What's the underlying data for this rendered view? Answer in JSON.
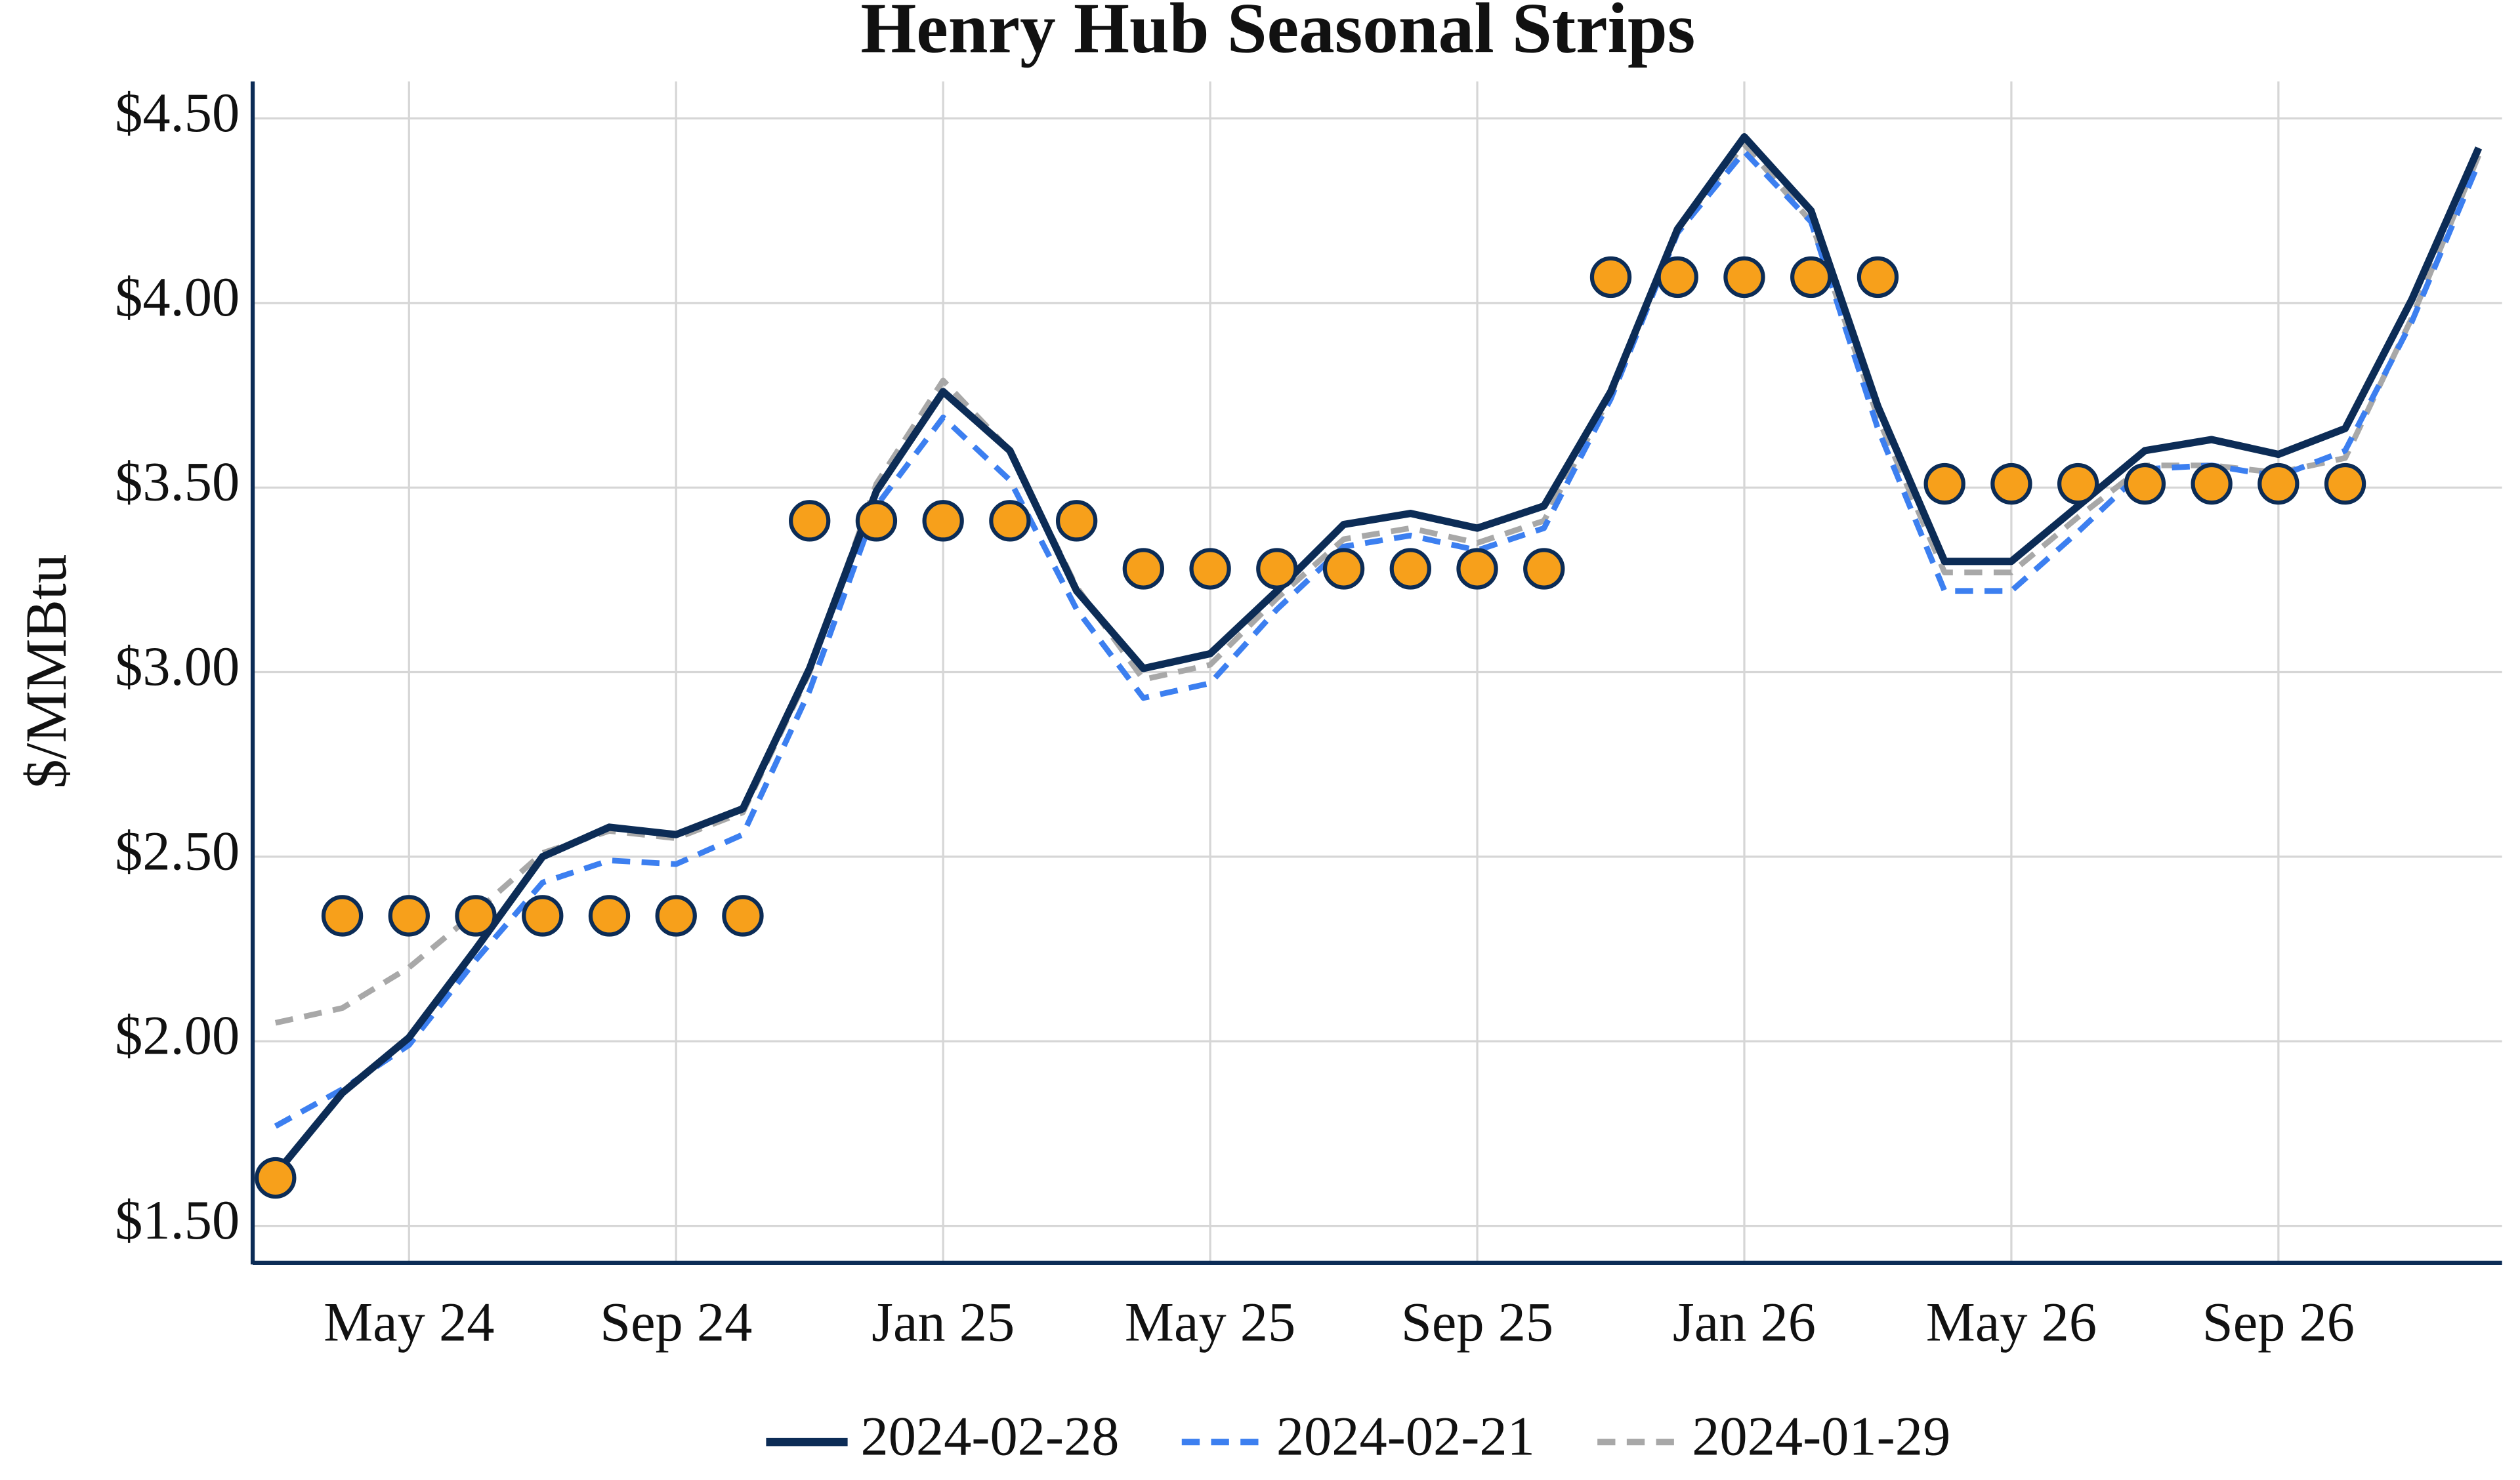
{
  "chart_data": {
    "type": "line",
    "title": "Henry Hub Seasonal Strips",
    "y_label": "$/MMBtu",
    "categories": [
      null,
      null,
      "May 24",
      null,
      null,
      null,
      "Sep 24",
      null,
      null,
      null,
      "Jan 25",
      null,
      null,
      null,
      "May 25",
      null,
      null,
      null,
      "Sep 25",
      null,
      null,
      null,
      "Jan 26",
      null,
      null,
      null,
      "May 26",
      null,
      null,
      null,
      "Sep 26",
      null,
      null,
      null
    ],
    "ylim": [
      1.4,
      4.6
    ],
    "yticks": [
      {
        "value": 1.5,
        "label": "$1.50"
      },
      {
        "value": 2,
        "label": "$2.00"
      },
      {
        "value": 2.5,
        "label": "$2.50"
      },
      {
        "value": 3,
        "label": "$3.00"
      },
      {
        "value": 3.5,
        "label": "$3.50"
      },
      {
        "value": 4,
        "label": "$4.00"
      },
      {
        "value": 4.5,
        "label": "$4.50"
      }
    ],
    "grid": true,
    "legend": "bottom",
    "series": [
      {
        "name": "2024-02-28",
        "color": "#0c2c56",
        "style": "solid",
        "values": [
          1.64,
          1.86,
          2.01,
          2.25,
          2.5,
          2.58,
          2.56,
          2.63,
          3.01,
          3.49,
          3.76,
          3.6,
          3.22,
          3.01,
          3.05,
          3.22,
          3.4,
          3.43,
          3.39,
          3.45,
          3.76,
          4.2,
          4.45,
          4.25,
          3.72,
          3.3,
          3.3,
          3.45,
          3.6,
          3.63,
          3.59,
          3.66,
          4.01,
          4.42
        ]
      },
      {
        "name": "2024-02-21",
        "color": "#3c7ff0",
        "style": "dashed",
        "values": [
          1.77,
          1.87,
          1.99,
          2.22,
          2.43,
          2.49,
          2.48,
          2.56,
          2.95,
          3.45,
          3.69,
          3.52,
          3.17,
          2.93,
          2.97,
          3.17,
          3.34,
          3.37,
          3.33,
          3.39,
          3.74,
          4.19,
          4.41,
          4.22,
          3.66,
          3.22,
          3.22,
          3.38,
          3.55,
          3.56,
          3.53,
          3.6,
          3.95,
          4.38
        ]
      },
      {
        "name": "2024-01-29",
        "color": "#a8a8a8",
        "style": "dashed",
        "values": [
          2.05,
          2.09,
          2.2,
          2.35,
          2.51,
          2.57,
          2.55,
          2.62,
          3.0,
          3.51,
          3.79,
          3.6,
          3.23,
          2.98,
          3.02,
          3.2,
          3.36,
          3.39,
          3.35,
          3.41,
          3.75,
          4.2,
          4.43,
          4.22,
          3.69,
          3.27,
          3.27,
          3.42,
          3.56,
          3.56,
          3.54,
          3.58,
          3.96,
          4.4
        ]
      },
      {
        "type": "scatter",
        "color": "#f7a01b",
        "edge_color": "#0c2c56",
        "values": [
          1.63,
          2.34,
          2.34,
          2.34,
          2.34,
          2.34,
          2.34,
          2.34,
          3.41,
          3.41,
          3.41,
          3.41,
          3.41,
          3.28,
          3.28,
          3.28,
          3.28,
          3.28,
          3.28,
          3.28,
          4.07,
          4.07,
          4.07,
          4.07,
          4.07,
          3.51,
          3.51,
          3.51,
          3.51,
          3.51,
          3.51,
          3.51,
          null,
          null
        ]
      }
    ]
  }
}
